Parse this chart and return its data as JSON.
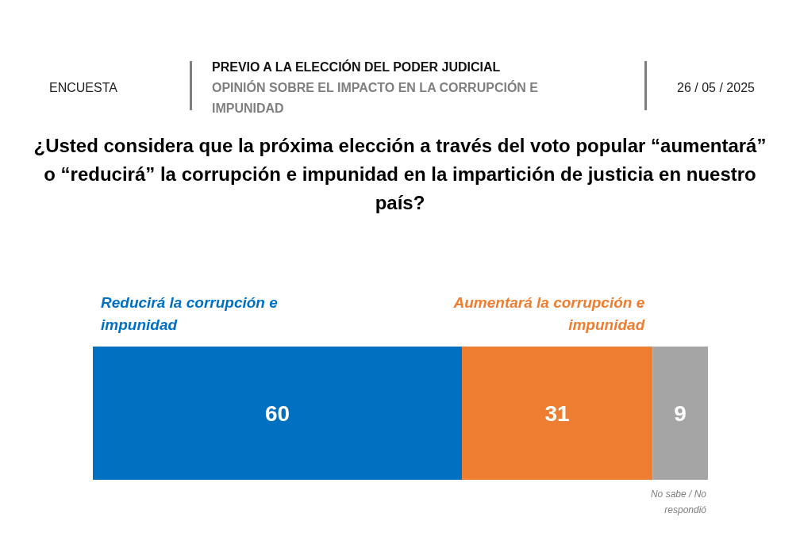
{
  "chart_data": {
    "type": "bar",
    "orientation": "horizontal",
    "stacked": true,
    "title": "¿Usted considera que la próxima elección a través del voto popular “aumentará” o “reducirá” la corrupción e impunidad en la impartición de justicia en nuestro país?",
    "subtitle": "PREVIO A LA ELECCIÓN DEL PODER JUDICIAL",
    "annotations": [
      "ENCUESTA",
      "OPINIÓN SOBRE EL IMPACTO EN LA CORRUPCIÓN E IMPUNIDAD",
      "26 / 05 / 2025"
    ],
    "categories": [
      null
    ],
    "series": [
      {
        "name": "Reducirá la corrupción e impunidad",
        "color": "#0070c0",
        "values": [
          60
        ]
      },
      {
        "name": "Aumentará la corrupción e impunidad",
        "color": "#ed7d31",
        "values": [
          31
        ]
      },
      {
        "name": "No sabe / No respondió",
        "color": "#a5a5a5",
        "values": [
          9
        ]
      }
    ],
    "xlim": [
      0,
      100
    ],
    "tick_labels": false,
    "data_labels": true,
    "legend": false
  }
}
